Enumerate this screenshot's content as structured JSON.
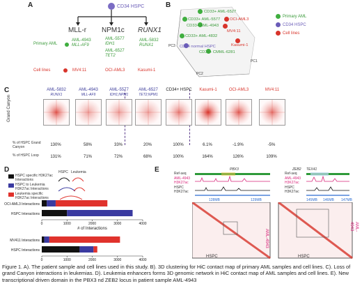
{
  "panels": {
    "a": "A",
    "b": "B",
    "c": "C",
    "d": "D",
    "e": "E"
  },
  "panelA": {
    "root": "CD34 HSPC",
    "groups": [
      "MLL-r",
      "NPM1c",
      "RUNX1"
    ],
    "row_primary": "Primary AML",
    "row_cells": "Cell lines",
    "mll_samples": [
      "AML-4943",
      "MLL-AF9"
    ],
    "npm_samples": [
      "AML-5577",
      "IDH1",
      "AML-6527",
      "TET2"
    ],
    "runx_samples": [
      "AML-5832",
      "RUNX1"
    ],
    "cell_lines": [
      "MV4:11",
      "OCI-AML3",
      "Kasumi-1"
    ]
  },
  "panelB": {
    "points": [
      "CD33+ AML-6527",
      "CD33+ AML-5577",
      "OCI-AML3",
      "CD33+ AML-4943",
      "MV4:11",
      "CD33+ AML-4832",
      "Kasumi-1",
      "CD34 normal HSPC",
      "CD34+ CMML-6281"
    ],
    "axes": [
      "PC3",
      "PC2",
      "PC1"
    ],
    "legend": [
      "Primary AML",
      "CD34 HSPC",
      "Cell lines"
    ]
  },
  "panelC": {
    "ylabel": "Grand Canyon",
    "samples": [
      {
        "name": "AML-5832",
        "sub": "RUNX1",
        "gc": "130%",
        "loop": "131%",
        "color": "#3b3b9a"
      },
      {
        "name": "AML-4943",
        "sub": "MLL-AF9",
        "gc": "58%",
        "loop": "71%",
        "color": "#3b3b9a"
      },
      {
        "name": "AML-5577",
        "sub": "IDH1;NPM1",
        "gc": "33%",
        "loop": "72%",
        "color": "#3b3b9a"
      },
      {
        "name": "AML-6527",
        "sub": "TET2;NPM1",
        "gc": "20%",
        "loop": "68%",
        "color": "#3b3b9a"
      },
      {
        "name": "CD34+ HSPC",
        "sub": "",
        "gc": "100%",
        "loop": "100%",
        "color": "#222222"
      },
      {
        "name": "Kasumi-1",
        "sub": "",
        "gc": "6.1%",
        "loop": "164%",
        "color": "#d8342b"
      },
      {
        "name": "OCI-AML3",
        "sub": "",
        "gc": "-1.9%",
        "loop": "126%",
        "color": "#d8342b"
      },
      {
        "name": "MV4:11",
        "sub": "",
        "gc": "-5%",
        "loop": "109%",
        "color": "#d8342b"
      }
    ],
    "row1": "% of HSPC Grand Canyon",
    "row2": "% of HSPC Loop"
  },
  "panelD": {
    "legend": [
      "HSPC specific H3K27ac Interactions",
      "HSPC to Leukemia H3K27ac Interactions",
      "Leukemia specific H3K27ac Interactions"
    ],
    "header": [
      "HSPC",
      "Leukemia"
    ],
    "chart_data": [
      {
        "type": "bar",
        "categories": [
          "OCI-AML3 Interactions",
          "HSPC Interactions"
        ],
        "series": [
          {
            "values": [
              200,
              1000
            ]
          },
          {
            "values": [
              350,
              2600
            ]
          },
          {
            "values": [
              2050,
              0
            ]
          }
        ],
        "xlabel": "# of Interactions",
        "xlim": [
          0,
          4000
        ],
        "ticks": [
          "0",
          "1000",
          "2000",
          "3000",
          "4000"
        ]
      },
      {
        "type": "bar",
        "categories": [
          "MV411 Interactions",
          "HSPC Interactions"
        ],
        "series": [
          {
            "values": [
              100,
              1500
            ]
          },
          {
            "values": [
              200,
              550
            ]
          },
          {
            "values": [
              2800,
              150
            ]
          }
        ],
        "xlabel": "# of Interactions",
        "xlim": [
          0,
          4000
        ],
        "ticks": [
          "0",
          "1000",
          "2000",
          "3000",
          "4000"
        ]
      }
    ]
  },
  "panelE": {
    "tracks": [
      "Ref-seq",
      "AML-4943",
      "H3K27ac",
      "HSPC",
      "H3K27ac"
    ],
    "genes_left": [
      "PBX3"
    ],
    "genes_right": [
      "ZEB2",
      "TEX41"
    ],
    "ticks_left": [
      "128MB",
      "129MB"
    ],
    "ticks_right": [
      "145MB",
      "146MB",
      "147MB"
    ],
    "aml_label": "AML-4943",
    "hspc_label": "HSPC"
  },
  "caption": "Figure 1. A). The patient sample and cell lines used in this study. B). 3D clustering for HiC contact map of primary AML samples and cell lines. C). Loss of grand Canyon interactions in leukemias. D). Leukemia enhancers forms 3D genomic network in HiC contact map of AML samples and cell lines. E). New transcriptional driven domain in the PBX3 nd ZEB2 locus in patient sample AML-4943"
}
